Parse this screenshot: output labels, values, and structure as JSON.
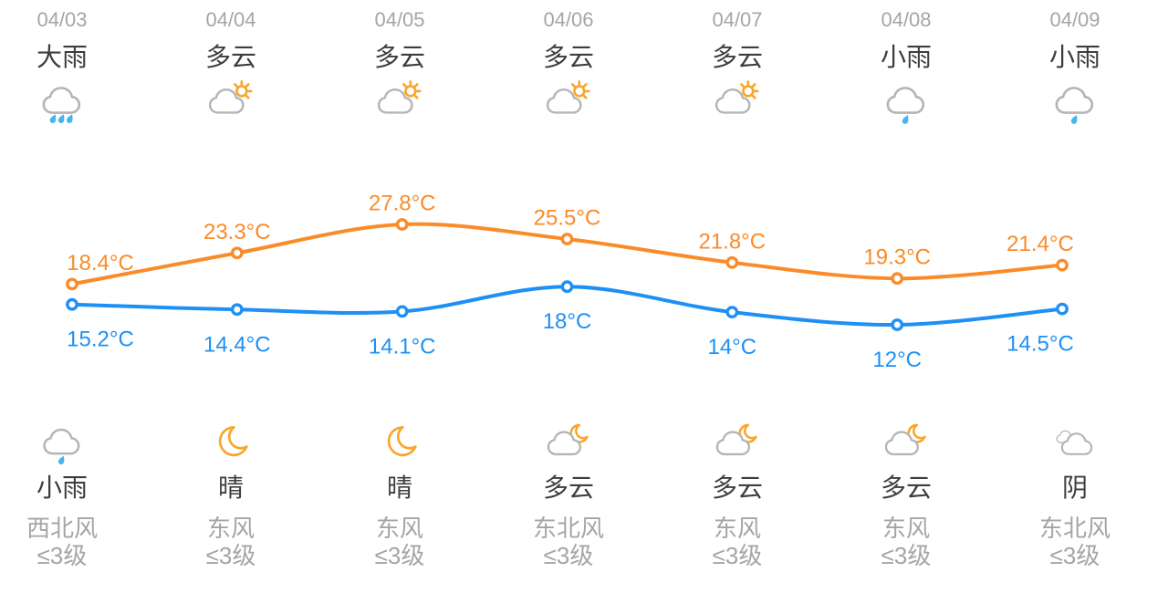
{
  "colors": {
    "high_line": "#fa8b28",
    "low_line": "#1e90f5",
    "date_text": "#a5a5a5",
    "condition_text": "#3d3d3d",
    "wind_text": "#a5a5a5",
    "icon_cloud": "#b5b5b5",
    "icon_sun": "#f9a62a",
    "icon_moon": "#f9a62a",
    "icon_rain": "#45b6ee"
  },
  "days": [
    {
      "date": "04/03",
      "day_condition": "大雨",
      "day_icon": "heavy-rain",
      "night_condition": "小雨",
      "night_icon": "light-rain",
      "wind_direction": "西北风",
      "wind_level": "≤3级"
    },
    {
      "date": "04/04",
      "day_condition": "多云",
      "day_icon": "partly-cloudy-day",
      "night_condition": "晴",
      "night_icon": "clear-night",
      "wind_direction": "东风",
      "wind_level": "≤3级"
    },
    {
      "date": "04/05",
      "day_condition": "多云",
      "day_icon": "partly-cloudy-day",
      "night_condition": "晴",
      "night_icon": "clear-night",
      "wind_direction": "东风",
      "wind_level": "≤3级"
    },
    {
      "date": "04/06",
      "day_condition": "多云",
      "day_icon": "partly-cloudy-day",
      "night_condition": "多云",
      "night_icon": "partly-cloudy-night",
      "wind_direction": "东北风",
      "wind_level": "≤3级"
    },
    {
      "date": "04/07",
      "day_condition": "多云",
      "day_icon": "partly-cloudy-day",
      "night_condition": "多云",
      "night_icon": "partly-cloudy-night",
      "wind_direction": "东风",
      "wind_level": "≤3级"
    },
    {
      "date": "04/08",
      "day_condition": "小雨",
      "day_icon": "light-rain",
      "night_condition": "多云",
      "night_icon": "partly-cloudy-night",
      "wind_direction": "东风",
      "wind_level": "≤3级"
    },
    {
      "date": "04/09",
      "day_condition": "小雨",
      "day_icon": "light-rain",
      "night_condition": "阴",
      "night_icon": "overcast",
      "wind_direction": "东北风",
      "wind_level": "≤3级"
    }
  ],
  "chart_data": {
    "type": "line",
    "categories": [
      "04/03",
      "04/04",
      "04/05",
      "04/06",
      "04/07",
      "04/08",
      "04/09"
    ],
    "series": [
      {
        "name": "high",
        "values": [
          18.4,
          23.3,
          27.8,
          25.5,
          21.8,
          19.3,
          21.4
        ],
        "point_labels": [
          "18.4°C",
          "23.3°C",
          "27.8°C",
          "25.5°C",
          "21.8°C",
          "19.3°C",
          "21.4°C"
        ],
        "color": "#fa8b28",
        "label_position": "above"
      },
      {
        "name": "low",
        "values": [
          15.2,
          14.4,
          14.1,
          18,
          14,
          12,
          14.5
        ],
        "point_labels": [
          "15.2°C",
          "14.4°C",
          "14.1°C",
          "18°C",
          "14°C",
          "12°C",
          "14.5°C"
        ],
        "color": "#1e90f5",
        "label_position": "below"
      }
    ],
    "ymin": 12,
    "ymax": 27.8,
    "smooth": true,
    "grid": false,
    "axes_visible": false,
    "legend": false
  }
}
